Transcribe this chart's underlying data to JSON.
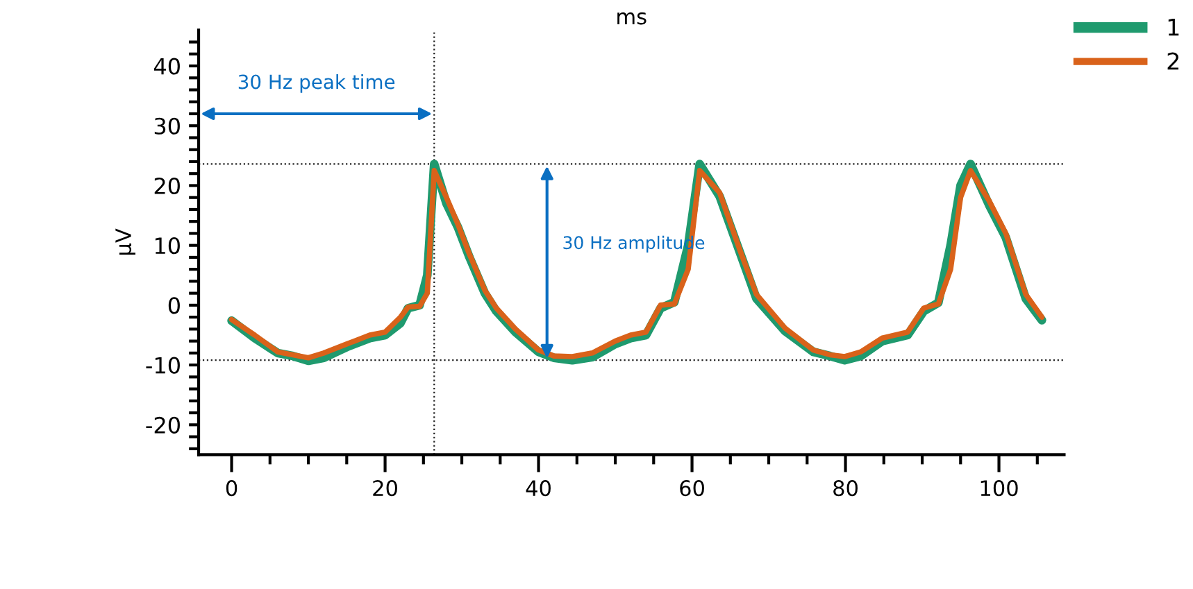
{
  "chart_data": {
    "type": "line",
    "xlabel": "ms",
    "ylabel": "μV",
    "x": [
      0,
      3,
      6,
      8,
      10,
      12,
      15,
      18,
      20,
      22,
      23,
      24.5,
      25.5,
      26.4,
      28,
      29.5,
      31,
      33,
      34.5,
      37,
      40,
      42,
      44.4,
      47,
      50,
      52,
      54,
      55.9,
      57.7,
      59.5,
      61.0,
      63.6,
      66.3,
      68.4,
      72.1,
      75.8,
      78,
      79.9,
      82,
      84.8,
      88.1,
      90.2,
      92.1,
      93.7,
      95,
      96.3,
      98.7,
      100.9,
      103.5,
      105.6
    ],
    "series": [
      {
        "name": "1",
        "color": "#1f9a6e",
        "values": [
          -2.6,
          -5.5,
          -8,
          -8.5,
          -9.3,
          -8.8,
          -7,
          -5.5,
          -5,
          -3,
          -0.5,
          0,
          5,
          23.6,
          17,
          13,
          8,
          2,
          -1,
          -4.5,
          -7.8,
          -8.8,
          -9.2,
          -8.7,
          -6.5,
          -5.5,
          -5,
          -0.5,
          0.5,
          10,
          23.6,
          18.2,
          8.6,
          1.1,
          -4.3,
          -7.8,
          -8.5,
          -9.2,
          -8.5,
          -6,
          -5,
          -1,
          0.4,
          10,
          20,
          23.6,
          16.8,
          11.3,
          1.1,
          -2.5
        ]
      },
      {
        "name": "2",
        "color": "#d9621a",
        "values": [
          -2.4,
          -5,
          -7.8,
          -8.3,
          -8.8,
          -8,
          -6.5,
          -5,
          -4.5,
          -2,
          -0.3,
          -0.2,
          2,
          22.5,
          18,
          13.5,
          8.5,
          2.5,
          -0.5,
          -4,
          -7.5,
          -8.5,
          -8.6,
          -8,
          -6,
          -5,
          -4.5,
          0,
          0.2,
          6,
          22.5,
          18.8,
          9,
          1.8,
          -3.8,
          -7.5,
          -8.3,
          -8.6,
          -7.8,
          -5.5,
          -4.5,
          -0.5,
          0.2,
          6,
          18,
          22.5,
          17.5,
          12,
          1.8,
          -2
        ]
      }
    ],
    "xlim": [
      -4.3,
      108.5
    ],
    "ylim": [
      -25,
      46
    ],
    "xticks": [
      0,
      {
        "value": 5,
        "label": null
      },
      {
        "value": 10,
        "label": null
      },
      {
        "value": 15,
        "label": null
      },
      20,
      {
        "value": 25,
        "label": null
      },
      {
        "value": 30,
        "label": null
      },
      {
        "value": 35,
        "label": null
      },
      40,
      {
        "value": 45,
        "label": null
      },
      {
        "value": 50,
        "label": null
      },
      {
        "value": 55,
        "label": null
      },
      60,
      {
        "value": 65,
        "label": null
      },
      {
        "value": 70,
        "label": null
      },
      {
        "value": 75,
        "label": null
      },
      80,
      {
        "value": 85,
        "label": null
      },
      {
        "value": 90,
        "label": null
      },
      {
        "value": 95,
        "label": null
      },
      100,
      {
        "value": 105,
        "label": null
      }
    ],
    "yticks": [
      {
        "value": -24,
        "label": null
      },
      {
        "value": -22,
        "label": null
      },
      -20,
      {
        "value": -18,
        "label": null
      },
      {
        "value": -16,
        "label": null
      },
      {
        "value": -14,
        "label": null
      },
      {
        "value": -12,
        "label": null
      },
      -10,
      {
        "value": -8,
        "label": null
      },
      {
        "value": -6,
        "label": null
      },
      {
        "value": -4,
        "label": null
      },
      {
        "value": -2,
        "label": null
      },
      0,
      {
        "value": 2,
        "label": null
      },
      {
        "value": 4,
        "label": null
      },
      {
        "value": 6,
        "label": null
      },
      {
        "value": 8,
        "label": null
      },
      10,
      {
        "value": 12,
        "label": null
      },
      {
        "value": 14,
        "label": null
      },
      {
        "value": 16,
        "label": null
      },
      {
        "value": 18,
        "label": null
      },
      20,
      {
        "value": 22,
        "label": null
      },
      {
        "value": 24,
        "label": null
      },
      {
        "value": 26,
        "label": null
      },
      {
        "value": 28,
        "label": null
      },
      30,
      {
        "value": 32,
        "label": null
      },
      {
        "value": 34,
        "label": null
      },
      {
        "value": 36,
        "label": null
      },
      {
        "value": 38,
        "label": null
      },
      40,
      {
        "value": 42,
        "label": null
      },
      {
        "value": 44,
        "label": null
      }
    ],
    "ref_lines": [
      {
        "axis": "x",
        "value": 26.4,
        "color": "#222222",
        "line_style": "dotted"
      },
      {
        "axis": "y",
        "value": 23.6,
        "color": "#222222",
        "line_style": "dotted"
      },
      {
        "axis": "y",
        "value": -9.2,
        "color": "#222222",
        "line_style": "dotted"
      }
    ],
    "annotations": [
      {
        "text": "30 Hz peak time",
        "x": 26.4,
        "y": 32
      },
      "30 Hz amplitude"
    ],
    "legend": "top right",
    "grid": false,
    "marker": "none",
    "line_style": "solid"
  }
}
